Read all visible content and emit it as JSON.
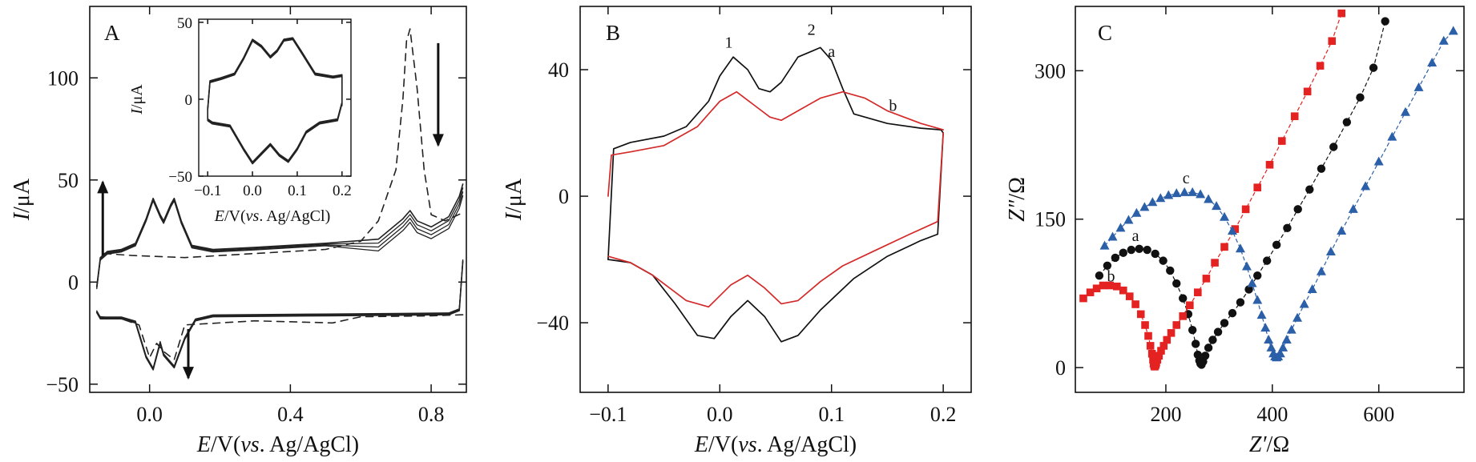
{
  "figure": {
    "panels": [
      "A",
      "B",
      "C"
    ]
  },
  "chart_data": [
    {
      "panel": "A",
      "type": "line",
      "xlabel": {
        "main": "E/V(vs. Ag/AgCl)",
        "italic_1": "E",
        "seg_1": "/V(",
        "italic_2": "vs",
        "seg_2": ". Ag/AgCl)"
      },
      "ylabel": {
        "italic": "I",
        "rest": "/μA"
      },
      "xlim": [
        -0.17,
        0.9
      ],
      "ylim": [
        -54,
        135
      ],
      "xticks": [
        0.0,
        0.4,
        0.8
      ],
      "xtick_labels": [
        "0.0",
        "0.4",
        "0.8"
      ],
      "yticks": [
        -50,
        0,
        50,
        100
      ],
      "ytick_labels": [
        "−50",
        "0",
        "50",
        "100"
      ],
      "annotations": [
        "up arrow near E=-0.13 V",
        "down arrow near E=0.11 V",
        "down arrow near E=0.82 V"
      ],
      "series": [
        {
          "style": "solid",
          "description": "repeated cycles (first cycle on top)",
          "anodic": {
            "x": [
              -0.15,
              -0.14,
              -0.12,
              -0.08,
              -0.04,
              -0.01,
              0.01,
              0.03,
              0.04,
              0.06,
              0.07,
              0.09,
              0.12,
              0.18,
              0.3,
              0.5,
              0.65,
              0.72,
              0.74,
              0.76,
              0.8,
              0.85,
              0.88,
              0.89
            ],
            "y": [
              -2,
              12,
              15,
              16,
              19,
              31,
              41,
              33,
              30,
              38,
              41,
              30,
              18,
              16,
              17,
              19,
              21,
              31,
              35,
              30,
              27,
              32,
              42,
              48
            ]
          },
          "cathodic": {
            "x": [
              0.89,
              0.88,
              0.85,
              0.5,
              0.18,
              0.13,
              0.1,
              0.07,
              0.04,
              0.03,
              0.01,
              -0.01,
              -0.04,
              -0.08,
              -0.14,
              -0.15
            ],
            "y": [
              10,
              -14,
              -16,
              -16.5,
              -17,
              -19,
              -28,
              -42,
              -36,
              -30,
              -43,
              -37,
              -20,
              -18,
              -18,
              -15
            ]
          }
        },
        {
          "style": "dashed",
          "description": "first scan",
          "anodic": {
            "x": [
              -0.13,
              -0.05,
              0.1,
              0.3,
              0.5,
              0.6,
              0.65,
              0.7,
              0.72,
              0.73,
              0.74,
              0.76,
              0.78,
              0.8,
              0.84,
              0.89
            ],
            "y": [
              14,
              13,
              12,
              14,
              16,
              20,
              30,
              55,
              90,
              118,
              124,
              95,
              55,
              33,
              30,
              34
            ]
          },
          "cathodic": {
            "x": [
              0.89,
              0.8,
              0.6,
              0.52,
              0.3,
              0.1,
              0.07,
              0.04,
              0.02,
              0.0,
              -0.03,
              -0.08,
              -0.14
            ],
            "y": [
              -16,
              -16.5,
              -17,
              -20,
              -19,
              -21,
              -38,
              -34,
              -30,
              -37,
              -21,
              -18,
              -17
            ]
          }
        }
      ],
      "inset": {
        "xlim": [
          -0.12,
          0.22
        ],
        "ylim": [
          -50,
          52
        ],
        "xticks": [
          -0.1,
          0.0,
          0.1,
          0.2
        ],
        "xtick_labels": [
          "−0.1",
          "0.0",
          "0.1",
          "0.2"
        ],
        "yticks": [
          -50,
          0,
          50
        ],
        "ytick_labels": [
          "−50",
          "0",
          "50"
        ],
        "xlabel": {
          "italic_1": "E",
          "seg_1": "/V(",
          "italic_2": "vs",
          "seg_2": ". Ag/AgCl)"
        },
        "ylabel": {
          "italic": "I",
          "rest": "/μA"
        },
        "anodic": {
          "x": [
            -0.1,
            -0.095,
            -0.07,
            -0.04,
            -0.02,
            0.0,
            0.02,
            0.04,
            0.055,
            0.07,
            0.09,
            0.11,
            0.14,
            0.18,
            0.2,
            0.2
          ],
          "y": [
            -6,
            12,
            14,
            17,
            27,
            39,
            35,
            28,
            32,
            39,
            40,
            31,
            17,
            15,
            16,
            -3
          ]
        },
        "cathodic": {
          "x": [
            0.2,
            0.19,
            0.15,
            0.12,
            0.1,
            0.08,
            0.06,
            0.04,
            0.02,
            0.0,
            -0.02,
            -0.05,
            -0.09,
            -0.1,
            -0.1
          ],
          "y": [
            -3,
            -14,
            -16,
            -22,
            -33,
            -41,
            -37,
            -30,
            -36,
            -42,
            -33,
            -18,
            -16,
            -14,
            -6
          ]
        }
      }
    },
    {
      "panel": "B",
      "type": "line",
      "xlabel": {
        "italic_1": "E",
        "seg_1": "/V(",
        "italic_2": "vs",
        "seg_2": ". Ag/AgCl)"
      },
      "ylabel": {
        "italic": "I",
        "rest": "/μA"
      },
      "xlim": [
        -0.125,
        0.225
      ],
      "ylim": [
        -62,
        60
      ],
      "xticks": [
        -0.1,
        0.0,
        0.1,
        0.2
      ],
      "xtick_labels": [
        "−0.1",
        "0.0",
        "0.1",
        "0.2"
      ],
      "yticks": [
        -40,
        0,
        40
      ],
      "ytick_labels": [
        "−40",
        "0",
        "40"
      ],
      "labels": [
        {
          "text": "1",
          "x": 0.008,
          "y": 47
        },
        {
          "text": "2",
          "x": 0.082,
          "y": 51
        },
        {
          "text": "a",
          "x": 0.1,
          "y": 44
        },
        {
          "text": "b",
          "x": 0.155,
          "y": 27
        }
      ],
      "series": [
        {
          "name": "a",
          "color": "#111111",
          "anodic": {
            "x": [
              -0.1,
              -0.095,
              -0.08,
              -0.05,
              -0.03,
              -0.01,
              0.0,
              0.012,
              0.025,
              0.035,
              0.045,
              0.055,
              0.07,
              0.09,
              0.1,
              0.11,
              0.12,
              0.15,
              0.18,
              0.198,
              0.2
            ],
            "y": [
              -20,
              15,
              17,
              19,
              22,
              30,
              38,
              44,
              40,
              34,
              33,
              36,
              44,
              47,
              43,
              34,
              26,
              23,
              21.5,
              21,
              20
            ]
          },
          "cathodic": {
            "x": [
              0.2,
              0.195,
              0.18,
              0.15,
              0.12,
              0.09,
              0.07,
              0.055,
              0.04,
              0.025,
              0.01,
              -0.005,
              -0.02,
              -0.04,
              -0.06,
              -0.08,
              -0.1
            ],
            "y": [
              20,
              -12,
              -14,
              -19,
              -26,
              -36,
              -44,
              -46,
              -38,
              -33,
              -38,
              -45,
              -44,
              -34,
              -25,
              -21,
              -20
            ]
          }
        },
        {
          "name": "b",
          "color": "#d42a2a",
          "anodic": {
            "x": [
              -0.1,
              -0.097,
              -0.08,
              -0.05,
              -0.02,
              0.0,
              0.015,
              0.03,
              0.045,
              0.055,
              0.07,
              0.09,
              0.11,
              0.13,
              0.15,
              0.18,
              0.2
            ],
            "y": [
              0,
              13,
              14,
              16,
              22,
              30,
              33,
              29,
              25,
              24,
              27,
              31,
              33,
              31,
              27,
              23,
              21
            ]
          },
          "cathodic": {
            "x": [
              0.2,
              0.195,
              0.17,
              0.14,
              0.11,
              0.09,
              0.07,
              0.055,
              0.04,
              0.025,
              0.01,
              -0.01,
              -0.03,
              -0.06,
              -0.08,
              -0.1
            ],
            "y": [
              20,
              -8,
              -12,
              -17,
              -22,
              -27,
              -33,
              -34,
              -29,
              -25,
              -28,
              -35,
              -33,
              -25,
              -21,
              -19
            ]
          }
        }
      ]
    },
    {
      "panel": "C",
      "type": "scatter",
      "xlabel": {
        "italic": "Z′",
        "rest": "/Ω"
      },
      "ylabel": {
        "italic": "Z″",
        "rest": "/Ω"
      },
      "xlim": [
        30,
        760
      ],
      "ylim": [
        -25,
        365
      ],
      "xticks": [
        200,
        400,
        600
      ],
      "xtick_labels": [
        "200",
        "400",
        "600"
      ],
      "yticks": [
        0,
        150,
        300
      ],
      "ytick_labels": [
        "0",
        "150",
        "300"
      ],
      "labels": [
        {
          "text": "a",
          "x": 143,
          "y": 128
        },
        {
          "text": "b",
          "x": 97,
          "y": 87
        },
        {
          "text": "c",
          "x": 238,
          "y": 186
        }
      ],
      "series": [
        {
          "name": "a",
          "color": "#111111",
          "marker": "circle",
          "x": [
            75,
            90,
            105,
            120,
            135,
            150,
            165,
            180,
            195,
            208,
            220,
            232,
            242,
            250,
            256,
            260,
            263,
            265,
            267,
            270,
            274,
            280,
            288,
            298,
            310,
            325,
            340,
            356,
            372,
            390,
            408,
            428,
            448,
            470,
            492,
            515,
            540,
            565,
            590,
            612
          ],
          "y": [
            93,
            103,
            111,
            116,
            119,
            120,
            119,
            115,
            108,
            98,
            85,
            70,
            54,
            38,
            24,
            13,
            7,
            4,
            3,
            6,
            12,
            20,
            28,
            36,
            45,
            55,
            66,
            79,
            93,
            108,
            124,
            141,
            160,
            180,
            201,
            223,
            248,
            273,
            303,
            350
          ]
        },
        {
          "name": "b",
          "color": "#e52222",
          "marker": "square",
          "x": [
            45,
            58,
            70,
            82,
            95,
            108,
            120,
            132,
            143,
            153,
            161,
            167,
            171,
            174,
            176,
            177,
            178,
            179,
            180,
            181,
            182,
            184,
            187,
            191,
            196,
            202,
            210,
            220,
            232,
            245,
            260,
            276,
            292,
            310,
            330,
            350,
            372,
            395,
            418,
            442,
            466,
            490,
            512,
            530
          ],
          "y": [
            70,
            76,
            80,
            83,
            83,
            82,
            78,
            72,
            64,
            54,
            43,
            32,
            22,
            14,
            8,
            4,
            2,
            1,
            2,
            3,
            5,
            8,
            12,
            17,
            22,
            28,
            35,
            43,
            52,
            63,
            76,
            90,
            106,
            122,
            140,
            160,
            182,
            205,
            229,
            254,
            279,
            305,
            330,
            358
          ]
        },
        {
          "name": "c",
          "color": "#2b5fa8",
          "marker": "triangle",
          "x": [
            85,
            100,
            115,
            130,
            145,
            160,
            175,
            190,
            205,
            220,
            235,
            250,
            265,
            280,
            295,
            310,
            325,
            340,
            352,
            362,
            372,
            380,
            387,
            393,
            398,
            402,
            405,
            408,
            411,
            415,
            420,
            427,
            436,
            447,
            460,
            475,
            492,
            510,
            530,
            552,
            575,
            600,
            625,
            650,
            675,
            700,
            722,
            740
          ],
          "y": [
            123,
            132,
            141,
            149,
            156,
            162,
            167,
            171,
            174,
            176,
            177,
            177,
            175,
            170,
            163,
            152,
            138,
            120,
            102,
            85,
            68,
            53,
            40,
            28,
            20,
            14,
            11,
            10,
            11,
            14,
            20,
            28,
            38,
            50,
            64,
            79,
            97,
            117,
            138,
            160,
            183,
            208,
            233,
            258,
            283,
            308,
            330,
            340
          ]
        }
      ]
    }
  ]
}
